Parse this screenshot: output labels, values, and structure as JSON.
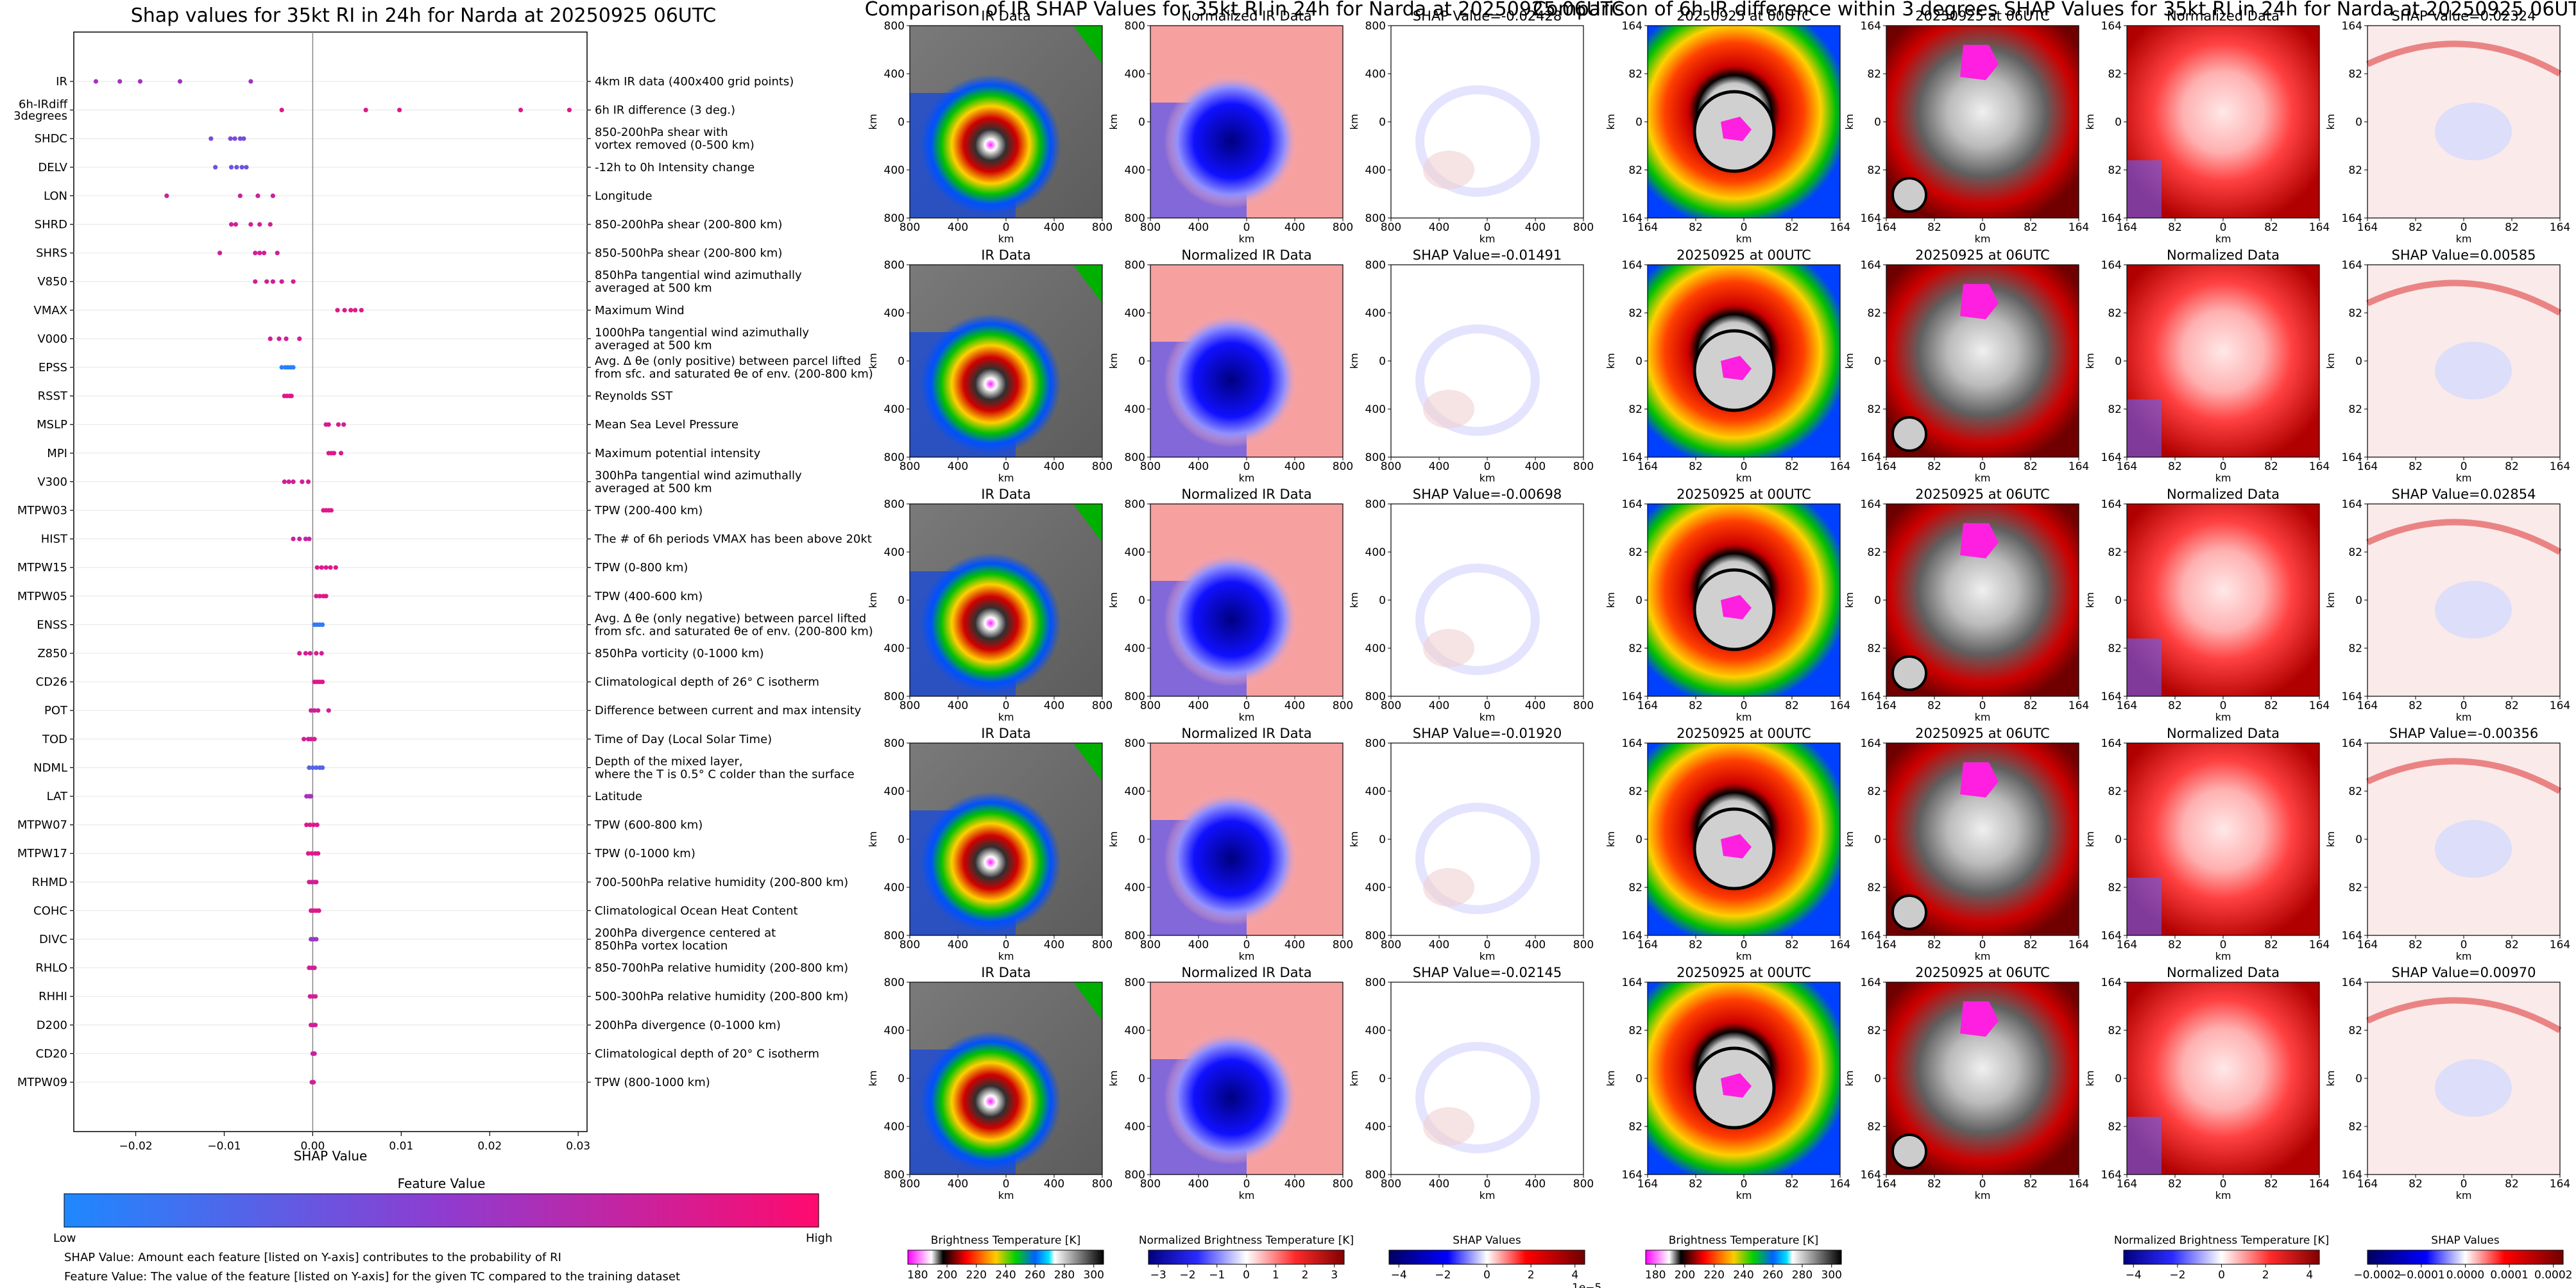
{
  "figure": {
    "left_title": "Shap values for 35kt RI in 24h for Narda at 20250925 06UTC",
    "mid_title": "Comparison of IR SHAP Values for 35kt RI in 24h for Narda at 20250925 06UTC",
    "right_title": "Comparison of 6h IR difference within 3 degrees SHAP Values for 35kt RI in 24h for Narda at 20250925 06UTC"
  },
  "colors": {
    "low": "#1e88ff",
    "mid": "#8e3cd0",
    "high": "#ff0a6e",
    "magenta": "#ff1fe0"
  },
  "chart_data": [
    {
      "type": "scatter",
      "title": "Shap values for 35kt RI in 24h for Narda at 20250925 06UTC",
      "xlabel": "SHAP Value",
      "xlim": [
        -0.027,
        0.031
      ],
      "xticks": [
        "−0.02",
        "−0.01",
        "0.00",
        "0.01",
        "0.02",
        "0.03"
      ],
      "xtick_values": [
        -0.02,
        -0.01,
        0.0,
        0.01,
        0.02,
        0.03
      ],
      "features": [
        {
          "name": "IR",
          "desc": [
            "4km IR data (400x400 grid points)"
          ],
          "fv": 0.6,
          "vals": [
            -0.0245,
            -0.0218,
            -0.0195,
            -0.015,
            -0.007
          ]
        },
        {
          "name": "6h-IRdiff\n3degrees",
          "desc": [
            "6h IR difference (3 deg.)"
          ],
          "fv": 0.85,
          "vals": [
            -0.0035,
            0.006,
            0.0098,
            0.0235,
            0.029
          ]
        },
        {
          "name": "SHDC",
          "desc": [
            "850-200hPa shear with",
            "vortex removed (0-500 km)"
          ],
          "fv": 0.4,
          "vals": [
            -0.0115,
            -0.0093,
            -0.0088,
            -0.0082,
            -0.0078
          ]
        },
        {
          "name": "DELV",
          "desc": [
            "-12h to 0h Intensity change"
          ],
          "fv": 0.35,
          "vals": [
            -0.011,
            -0.0092,
            -0.0086,
            -0.008,
            -0.0075
          ]
        },
        {
          "name": "LON",
          "desc": [
            "Longitude"
          ],
          "fv": 0.75,
          "vals": [
            -0.0165,
            -0.0082,
            -0.0062,
            -0.0045
          ]
        },
        {
          "name": "SHRD",
          "desc": [
            "850-200hPa shear (200-800 km)"
          ],
          "fv": 0.8,
          "vals": [
            -0.0092,
            -0.0087,
            -0.007,
            -0.006,
            -0.0048
          ]
        },
        {
          "name": "SHRS",
          "desc": [
            "850-500hPa shear (200-800 km)"
          ],
          "fv": 0.8,
          "vals": [
            -0.0105,
            -0.0065,
            -0.006,
            -0.0055,
            -0.004
          ]
        },
        {
          "name": "V850",
          "desc": [
            "850hPa tangential wind azimuthally",
            "averaged at 500 km"
          ],
          "fv": 0.8,
          "vals": [
            -0.0065,
            -0.0052,
            -0.0045,
            -0.0035,
            -0.0022
          ]
        },
        {
          "name": "VMAX",
          "desc": [
            "Maximum Wind"
          ],
          "fv": 0.85,
          "vals": [
            0.0028,
            0.0036,
            0.0043,
            0.0048,
            0.0055
          ]
        },
        {
          "name": "V000",
          "desc": [
            "1000hPa tangential wind azimuthally",
            "averaged at 500 km"
          ],
          "fv": 0.8,
          "vals": [
            -0.0048,
            -0.0038,
            -0.003,
            -0.0015
          ]
        },
        {
          "name": "EPSS",
          "desc": [
            "Avg. Δ θe (only positive) between parcel lifted",
            "from sfc. and saturated θe of env. (200-800 km)"
          ],
          "fv": 0.05,
          "vals": [
            -0.0035,
            -0.0031,
            -0.0028,
            -0.0025,
            -0.0022
          ]
        },
        {
          "name": "RSST",
          "desc": [
            "Reynolds SST"
          ],
          "fv": 0.85,
          "vals": [
            -0.0032,
            -0.0029,
            -0.0026,
            -0.0024
          ]
        },
        {
          "name": "MSLP",
          "desc": [
            "Mean Sea Level Pressure"
          ],
          "fv": 0.8,
          "vals": [
            0.0015,
            0.0018,
            0.0029,
            0.0035
          ]
        },
        {
          "name": "MPI",
          "desc": [
            "Maximum potential intensity"
          ],
          "fv": 0.85,
          "vals": [
            0.0018,
            0.0021,
            0.0024,
            0.0032
          ]
        },
        {
          "name": "V300",
          "desc": [
            "300hPa tangential wind azimuthally",
            "averaged at 500 km"
          ],
          "fv": 0.8,
          "vals": [
            -0.0032,
            -0.0027,
            -0.0022,
            -0.0012,
            -0.0005
          ]
        },
        {
          "name": "MTPW03",
          "desc": [
            "TPW (200-400 km)"
          ],
          "fv": 0.85,
          "vals": [
            0.0012,
            0.0015,
            0.0018,
            0.0021
          ]
        },
        {
          "name": "HIST",
          "desc": [
            "The # of 6h periods VMAX has been above 20kt"
          ],
          "fv": 0.75,
          "vals": [
            -0.0022,
            -0.0015,
            -0.0008,
            -0.0004
          ]
        },
        {
          "name": "MTPW15",
          "desc": [
            "TPW (0-800 km)"
          ],
          "fv": 0.85,
          "vals": [
            0.0005,
            0.001,
            0.0015,
            0.002,
            0.0026
          ]
        },
        {
          "name": "MTPW05",
          "desc": [
            "TPW (400-600 km)"
          ],
          "fv": 0.85,
          "vals": [
            0.0004,
            0.0008,
            0.0012,
            0.0015
          ]
        },
        {
          "name": "ENSS",
          "desc": [
            "Avg. Δ θe (only negative) between parcel lifted",
            "from sfc. and saturated θe of env. (200-800 km)"
          ],
          "fv": 0.1,
          "vals": [
            0.0002,
            0.0005,
            0.0008,
            0.0011
          ]
        },
        {
          "name": "Z850",
          "desc": [
            "850hPa vorticity (0-1000 km)"
          ],
          "fv": 0.8,
          "vals": [
            -0.0015,
            -0.0008,
            -0.0003,
            0.0004,
            0.001
          ]
        },
        {
          "name": "CD26",
          "desc": [
            "Climatological depth of 26° C isotherm"
          ],
          "fv": 0.85,
          "vals": [
            0.0002,
            0.0005,
            0.0008,
            0.0011
          ]
        },
        {
          "name": "POT",
          "desc": [
            "Difference between current and max intensity"
          ],
          "fv": 0.8,
          "vals": [
            -0.0002,
            0.0002,
            0.0006,
            0.0018
          ]
        },
        {
          "name": "TOD",
          "desc": [
            "Time of Day (Local Solar Time)"
          ],
          "fv": 0.8,
          "vals": [
            -0.001,
            -0.0005,
            -0.0002,
            0.0002
          ]
        },
        {
          "name": "NDML",
          "desc": [
            "Depth of the mixed layer,",
            "where the T is 0.5° C colder than the surface"
          ],
          "fv": 0.25,
          "vals": [
            -0.0004,
            0.0,
            0.0004,
            0.0008,
            0.0011
          ]
        },
        {
          "name": "LAT",
          "desc": [
            "Latitude"
          ],
          "fv": 0.6,
          "vals": [
            -0.0007,
            -0.0004,
            -0.0002
          ]
        },
        {
          "name": "MTPW07",
          "desc": [
            "TPW (600-800 km)"
          ],
          "fv": 0.85,
          "vals": [
            -0.0007,
            -0.0003,
            0.0001,
            0.0005
          ]
        },
        {
          "name": "MTPW17",
          "desc": [
            "TPW (0-1000 km)"
          ],
          "fv": 0.85,
          "vals": [
            -0.0005,
            -0.0001,
            0.0003,
            0.0006
          ]
        },
        {
          "name": "RHMD",
          "desc": [
            "700-500hPa relative humidity (200-800 km)"
          ],
          "fv": 0.8,
          "vals": [
            -0.0004,
            -0.0001,
            0.0002,
            0.0004
          ]
        },
        {
          "name": "COHC",
          "desc": [
            "Climatological Ocean Heat Content"
          ],
          "fv": 0.85,
          "vals": [
            -0.0002,
            0.0001,
            0.0004,
            0.0007
          ]
        },
        {
          "name": "DIVC",
          "desc": [
            "200hPa divergence centered at",
            "850hPa vortex location"
          ],
          "fv": 0.55,
          "vals": [
            -0.0002,
            0.0001,
            0.0004
          ]
        },
        {
          "name": "RHLO",
          "desc": [
            "850-700hPa relative humidity (200-800 km)"
          ],
          "fv": 0.8,
          "vals": [
            -0.0004,
            -0.0001,
            0.0002
          ]
        },
        {
          "name": "RHHI",
          "desc": [
            "500-300hPa relative humidity (200-800 km)"
          ],
          "fv": 0.8,
          "vals": [
            -0.0003,
            0.0,
            0.0003
          ]
        },
        {
          "name": "D200",
          "desc": [
            "200hPa divergence (0-1000 km)"
          ],
          "fv": 0.8,
          "vals": [
            -0.0002,
            0.0001,
            0.0003
          ]
        },
        {
          "name": "CD20",
          "desc": [
            "Climatological depth of 20° C isotherm"
          ],
          "fv": 0.75,
          "vals": [
            0.0,
            0.0002
          ]
        },
        {
          "name": "MTPW09",
          "desc": [
            "TPW (800-1000 km)"
          ],
          "fv": 0.8,
          "vals": [
            -0.0001,
            0.0001
          ]
        }
      ],
      "colorbar": {
        "title": "Feature Value",
        "low": "Low",
        "high": "High"
      },
      "notes": [
        "SHAP Value: Amount each feature [listed on Y-axis] contributes to the probability of RI",
        "Feature Value: The value of the feature [listed on Y-axis] for the given TC compared to the training dataset"
      ]
    },
    {
      "type": "heatmap",
      "title": "Comparison of IR SHAP Values for 35kt RI in 24h for Narda at 20250925 06UTC",
      "panel_titles": {
        "ir": "IR Data",
        "norm": "Normalized IR Data"
      },
      "shap_titles": [
        "SHAP Value=-0.02428",
        "SHAP Value=-0.01491",
        "SHAP Value=-0.00698",
        "SHAP Value=-0.01920",
        "SHAP Value=-0.02145"
      ],
      "axis_label": "km",
      "xticks": [
        "800",
        "400",
        "0",
        "400",
        "800"
      ],
      "yticks": [
        "800",
        "400",
        "0",
        "400",
        "800"
      ],
      "colorbars": [
        {
          "label": "Brightness Temperature [K]",
          "ticks": [
            "180",
            "200",
            "220",
            "240",
            "260",
            "280",
            "300"
          ]
        },
        {
          "label": "Normalized Brightness Temperature [K]",
          "ticks": [
            "−3",
            "−2",
            "−1",
            "0",
            "1",
            "2",
            "3"
          ]
        },
        {
          "label": "SHAP Values",
          "ticks": [
            "−4",
            "−2",
            "0",
            "2",
            "4"
          ],
          "offset": "1e−5"
        }
      ]
    },
    {
      "type": "heatmap",
      "title": "Comparison of 6h IR difference within 3 degrees SHAP Values for 35kt RI in 24h for Narda at 20250925 06UTC",
      "panel_titles": {
        "t0": "20250925 at 00UTC",
        "t6": "20250925 at 06UTC",
        "norm": "Normalized Data"
      },
      "shap_titles": [
        "SHAP Value=0.02324",
        "SHAP Value=0.00585",
        "SHAP Value=0.02854",
        "SHAP Value=-0.00356",
        "SHAP Value=0.00970"
      ],
      "axis_label": "km",
      "xticks": [
        "164",
        "82",
        "0",
        "82",
        "164"
      ],
      "yticks": [
        "164",
        "82",
        "0",
        "82",
        "164"
      ],
      "colorbars": [
        {
          "label": "Brightness Temperature [K]",
          "ticks": [
            "180",
            "200",
            "220",
            "240",
            "260",
            "280",
            "300"
          ]
        },
        {
          "label": "Normalized Brightness Temperature [K]",
          "ticks": [
            "−4",
            "−2",
            "0",
            "2",
            "4"
          ]
        },
        {
          "label": "SHAP Values",
          "ticks": [
            "−0.0002",
            "−0.0001",
            "0.0000",
            "0.0001",
            "0.0002"
          ]
        }
      ]
    }
  ]
}
